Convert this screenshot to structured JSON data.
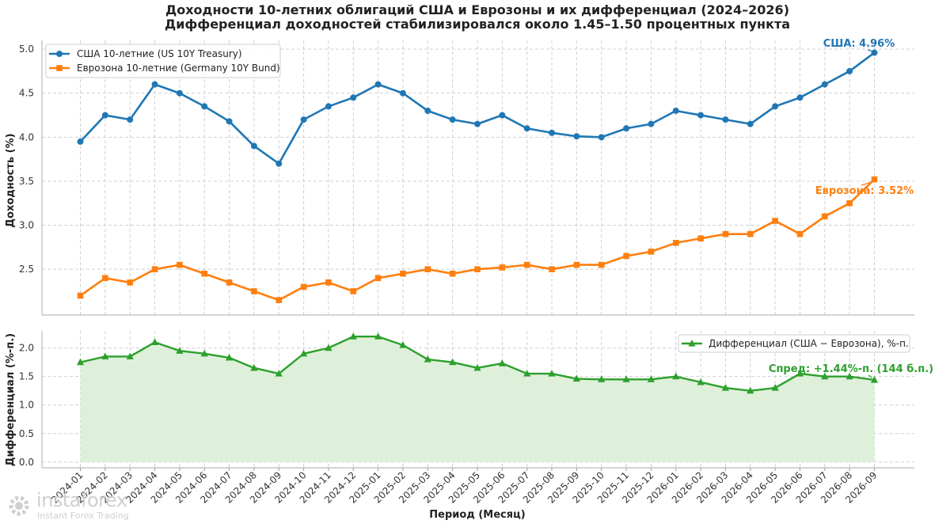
{
  "title_line1": "Доходности 10-летних облигаций США и Еврозоны и их дифференциал (2024–2026)",
  "title_line2": "Дифференциал доходностей стабилизировался около 1.45–1.50 процентных пункта",
  "watermark": {
    "name": "instaforex",
    "tagline": "Instant Forex Trading"
  },
  "colors": {
    "us": "#1f77b4",
    "eu": "#ff7f0e",
    "spread": "#2ca02c",
    "spread_fill": "#dff0da",
    "grid": "#d0d0d0"
  },
  "chart_data": [
    {
      "type": "line",
      "ylabel": "Доходность (%)",
      "ylim": [
        1.98,
        5.1
      ],
      "yticks": [
        "2.5",
        "3.0",
        "3.5",
        "4.0",
        "4.5",
        "5.0"
      ],
      "grid": true,
      "legend_position": "top-left",
      "x": [
        "2024-01",
        "2024-02",
        "2024-03",
        "2024-04",
        "2024-05",
        "2024-06",
        "2024-07",
        "2024-08",
        "2024-09",
        "2024-10",
        "2024-11",
        "2024-12",
        "2025-01",
        "2025-02",
        "2025-03",
        "2025-04",
        "2025-05",
        "2025-06",
        "2025-07",
        "2025-08",
        "2025-09",
        "2025-10",
        "2025-11",
        "2025-12",
        "2026-01",
        "2026-02",
        "2026-03",
        "2026-04",
        "2026-05",
        "2026-06",
        "2026-07",
        "2026-08",
        "2026-09"
      ],
      "series": [
        {
          "name": "США 10-летние (US 10Y Treasury)",
          "marker": "circle",
          "values": [
            3.95,
            4.25,
            4.2,
            4.6,
            4.5,
            4.35,
            4.18,
            3.9,
            3.7,
            4.2,
            4.35,
            4.45,
            4.6,
            4.5,
            4.3,
            4.2,
            4.15,
            4.25,
            4.1,
            4.05,
            4.01,
            4.0,
            4.1,
            4.15,
            4.3,
            4.25,
            4.2,
            4.15,
            4.35,
            4.45,
            4.6,
            4.75,
            4.96
          ],
          "annotation": "США: 4.96%"
        },
        {
          "name": "Еврозона 10-летние (Germany 10Y Bund)",
          "marker": "square",
          "values": [
            2.2,
            2.4,
            2.35,
            2.5,
            2.55,
            2.45,
            2.35,
            2.25,
            2.15,
            2.3,
            2.35,
            2.25,
            2.4,
            2.45,
            2.5,
            2.45,
            2.5,
            2.52,
            2.55,
            2.5,
            2.55,
            2.55,
            2.65,
            2.7,
            2.8,
            2.85,
            2.9,
            2.9,
            3.05,
            2.9,
            3.1,
            3.25,
            3.52
          ],
          "annotation": "Еврозона: 3.52%"
        }
      ]
    },
    {
      "type": "area",
      "ylabel": "Дифференциал (%-п.)",
      "xlabel": "Период (Месяц)",
      "ylim": [
        -0.1,
        2.3
      ],
      "yticks": [
        "0.0",
        "0.5",
        "1.0",
        "1.5",
        "2.0"
      ],
      "grid": true,
      "legend_position": "top-right",
      "x": [
        "2024-01",
        "2024-02",
        "2024-03",
        "2024-04",
        "2024-05",
        "2024-06",
        "2024-07",
        "2024-08",
        "2024-09",
        "2024-10",
        "2024-11",
        "2024-12",
        "2025-01",
        "2025-02",
        "2025-03",
        "2025-04",
        "2025-05",
        "2025-06",
        "2025-07",
        "2025-08",
        "2025-09",
        "2025-10",
        "2025-11",
        "2025-12",
        "2026-01",
        "2026-02",
        "2026-03",
        "2026-04",
        "2026-05",
        "2026-06",
        "2026-07",
        "2026-08",
        "2026-09"
      ],
      "series": [
        {
          "name": "Дифференциал (США − Еврозона), %-п.",
          "marker": "triangle",
          "values": [
            1.75,
            1.85,
            1.85,
            2.1,
            1.95,
            1.9,
            1.83,
            1.65,
            1.55,
            1.9,
            2.0,
            2.2,
            2.2,
            2.05,
            1.8,
            1.75,
            1.65,
            1.73,
            1.55,
            1.55,
            1.46,
            1.45,
            1.45,
            1.45,
            1.5,
            1.4,
            1.3,
            1.25,
            1.3,
            1.55,
            1.5,
            1.5,
            1.44
          ],
          "annotation": "Спред: +1.44%-п. (144 б.п.)"
        }
      ]
    }
  ]
}
